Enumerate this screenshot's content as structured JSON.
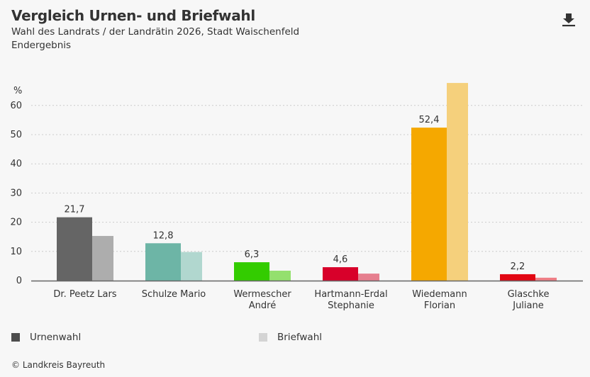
{
  "header": {
    "title": "Vergleich Urnen- und Briefwahl",
    "subtitle": "Wahl des Landrats / der Landrätin 2026, Stadt Waischenfeld",
    "status": "Endergebnis",
    "download_icon": "download-icon"
  },
  "legend": [
    {
      "label": "Urnenwahl",
      "color": "#4d4d4d"
    },
    {
      "label": "Briefwahl",
      "color": "#d4d4d4"
    }
  ],
  "source": "© Landkreis Bayreuth",
  "chart_data": {
    "type": "bar",
    "title": "Vergleich Urnen- und Briefwahl",
    "ylabel": "%",
    "ylim": [
      0,
      68
    ],
    "yticks": [
      0,
      10,
      20,
      30,
      40,
      50,
      60
    ],
    "grid": true,
    "legend_position": "bottom",
    "categories": [
      [
        "Dr. Peetz Lars"
      ],
      [
        "Schulze Mario"
      ],
      [
        "Wermescher",
        "André"
      ],
      [
        "Hartmann-Erdal",
        "Stephanie"
      ],
      [
        "Wiedemann",
        "Florian"
      ],
      [
        "Glaschke",
        "Juliane"
      ]
    ],
    "series": [
      {
        "name": "Urnenwahl",
        "values": [
          21.7,
          12.8,
          6.3,
          4.6,
          52.4,
          2.2
        ],
        "labels": [
          "21,7",
          "12,8",
          "6,3",
          "4,6",
          "52,4",
          "2,2"
        ]
      },
      {
        "name": "Briefwahl",
        "values": [
          15.3,
          9.8,
          3.4,
          2.4,
          67.7,
          1.0
        ]
      }
    ],
    "colors_urne": [
      "#656565",
      "#6db5a6",
      "#33cc00",
      "#d8002a",
      "#f5a800",
      "#e20613"
    ],
    "colors_brief": [
      "#adadad",
      "#b1d7cf",
      "#94e06e",
      "#e67f8f",
      "#f5d07c",
      "#ef7f86"
    ]
  }
}
